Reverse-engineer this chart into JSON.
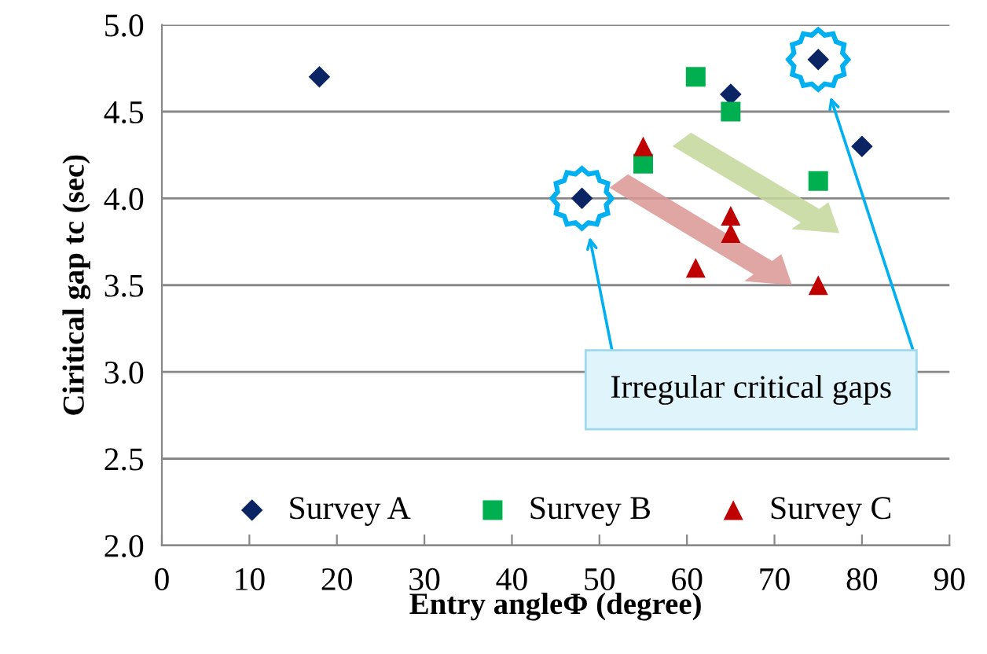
{
  "chart_data": {
    "type": "scatter",
    "xlabel": "Entry angleΦ (degree)",
    "ylabel": "Ciritical gap tc (sec)",
    "xlim": [
      0,
      90
    ],
    "xticks": [
      0,
      10,
      20,
      30,
      40,
      50,
      60,
      70,
      80,
      90
    ],
    "ylim": [
      2.0,
      5.0
    ],
    "yticks": [
      {
        "value": 2.0,
        "label": "2.0"
      },
      {
        "value": 2.5,
        "label": "2.5"
      },
      {
        "value": 3.0,
        "label": "3.0"
      },
      {
        "value": 3.5,
        "label": "3.5"
      },
      {
        "value": 4.0,
        "label": "4.0"
      },
      {
        "value": 4.5,
        "label": "4.5"
      },
      {
        "value": 5.0,
        "label": "5.0"
      }
    ],
    "grid": "y",
    "legend": "bottom",
    "series": [
      {
        "name": "Survey A",
        "color": "#0b2464",
        "marker": "diamond",
        "x": [
          18,
          48,
          65,
          75,
          80
        ],
        "values": [
          4.7,
          4.0,
          4.6,
          4.8,
          4.3
        ]
      },
      {
        "name": "Survey B",
        "color": "#00b050",
        "marker": "square",
        "x": [
          55,
          61,
          65,
          75
        ],
        "values": [
          4.2,
          4.7,
          4.5,
          4.1
        ]
      },
      {
        "name": "Survey C",
        "color": "#c00000",
        "marker": "triangle",
        "x": [
          55,
          61,
          65,
          65,
          75
        ],
        "values": [
          4.3,
          3.6,
          3.9,
          3.8,
          3.5
        ]
      }
    ],
    "annotations": [
      "Irregular critical gaps"
    ]
  }
}
